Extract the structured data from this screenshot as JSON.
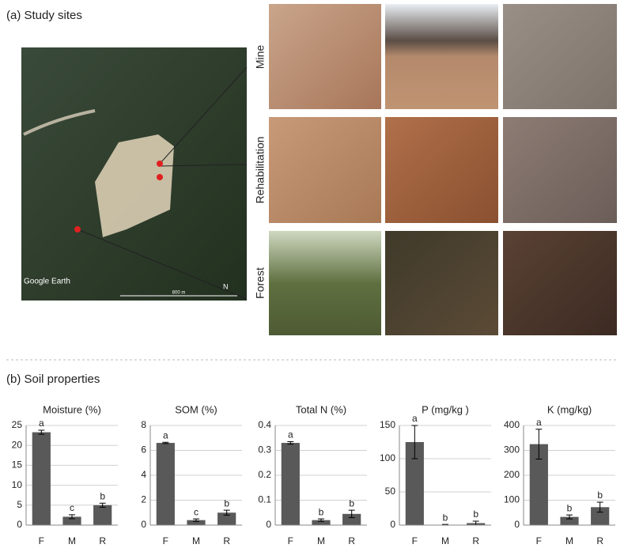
{
  "panel_a": {
    "title": "(a) Study sites",
    "rows": [
      "Mine",
      "Rehabilitation",
      "Forest"
    ],
    "map_labels": [
      "Google Earth",
      "N",
      "800 m"
    ]
  },
  "panel_b": {
    "title": "(b) Soil properties"
  },
  "chart_data": [
    {
      "type": "bar",
      "title": "Moisture (%)",
      "categories": [
        "F",
        "M",
        "R"
      ],
      "values": [
        23.3,
        2.1,
        5.0
      ],
      "errors": [
        0.5,
        0.5,
        0.5
      ],
      "annotations": [
        "a",
        "c",
        "b"
      ],
      "color": "#595959",
      "ylim": [
        0,
        25
      ],
      "yticks": [
        0,
        5,
        10,
        15,
        20,
        25
      ],
      "grid": true
    },
    {
      "type": "bar",
      "title": "SOM (%)",
      "categories": [
        "F",
        "M",
        "R"
      ],
      "values": [
        6.6,
        0.4,
        1.0
      ],
      "errors": [
        0.05,
        0.1,
        0.2
      ],
      "annotations": [
        "a",
        "c",
        "b"
      ],
      "color": "#595959",
      "ylim": [
        0,
        8
      ],
      "yticks": [
        0,
        2,
        4,
        6,
        8
      ],
      "grid": true
    },
    {
      "type": "bar",
      "title": "Total N (%)",
      "categories": [
        "F",
        "M",
        "R"
      ],
      "values": [
        0.33,
        0.02,
        0.045
      ],
      "errors": [
        0.005,
        0.005,
        0.015
      ],
      "annotations": [
        "a",
        "b",
        "b"
      ],
      "color": "#595959",
      "ylim": [
        0,
        0.4
      ],
      "yticks": [
        0,
        0.1,
        0.2,
        0.3,
        0.4
      ],
      "grid": true
    },
    {
      "type": "bar",
      "title": "P (mg/kg )",
      "categories": [
        "F",
        "M",
        "R"
      ],
      "values": [
        125,
        0.5,
        3
      ],
      "errors": [
        25,
        0.5,
        3
      ],
      "annotations": [
        "a",
        "b",
        "b"
      ],
      "color": "#595959",
      "ylim": [
        0,
        150
      ],
      "yticks": [
        0,
        50,
        100,
        150
      ],
      "grid": true
    },
    {
      "type": "bar",
      "title": "K (mg/kg)",
      "categories": [
        "F",
        "M",
        "R"
      ],
      "values": [
        325,
        33,
        72
      ],
      "errors": [
        60,
        8,
        20
      ],
      "annotations": [
        "a",
        "b",
        "b"
      ],
      "color": "#595959",
      "ylim": [
        0,
        400
      ],
      "yticks": [
        0,
        100,
        200,
        300,
        400
      ],
      "grid": true
    }
  ]
}
